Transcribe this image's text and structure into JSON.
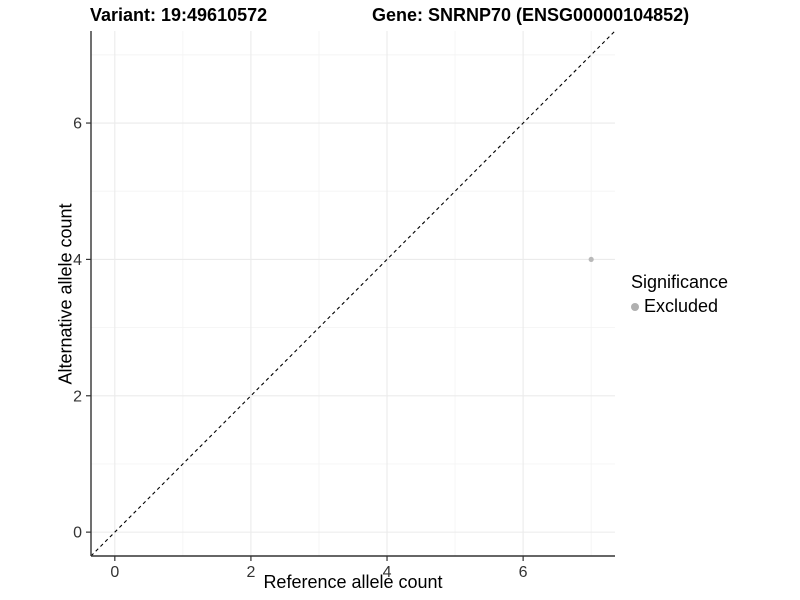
{
  "chart_data": {
    "type": "scatter",
    "title_left": "Variant: 19:49610572",
    "title_right": "Gene: SNRNP70 (ENSG00000104852)",
    "xlabel": "Reference allele count",
    "ylabel": "Alternative allele count",
    "xlim": [
      -0.35,
      7.35
    ],
    "ylim": [
      -0.35,
      7.35
    ],
    "x_major_ticks": [
      0,
      2,
      4,
      6
    ],
    "y_major_ticks": [
      0,
      2,
      4,
      6
    ],
    "x_minor_ticks": [
      1,
      3,
      5,
      7
    ],
    "y_minor_ticks": [
      1,
      3,
      5,
      7
    ],
    "grid": true,
    "identity_line": {
      "style": "dashed",
      "slope": 1,
      "intercept": 0,
      "color": "#000000"
    },
    "points": [
      {
        "x": 7,
        "y": 4,
        "significance": "Excluded"
      }
    ],
    "legend": {
      "title": "Significance",
      "position": "right",
      "entries": [
        {
          "label": "Excluded",
          "color": "#b0b0b0"
        }
      ]
    },
    "colors": {
      "background": "#ffffff",
      "grid_major": "#ebebeb",
      "grid_minor": "#f4f4f4",
      "axis_line": "#333333",
      "tick_text": "#333333",
      "point": "#b9b9b9"
    }
  }
}
